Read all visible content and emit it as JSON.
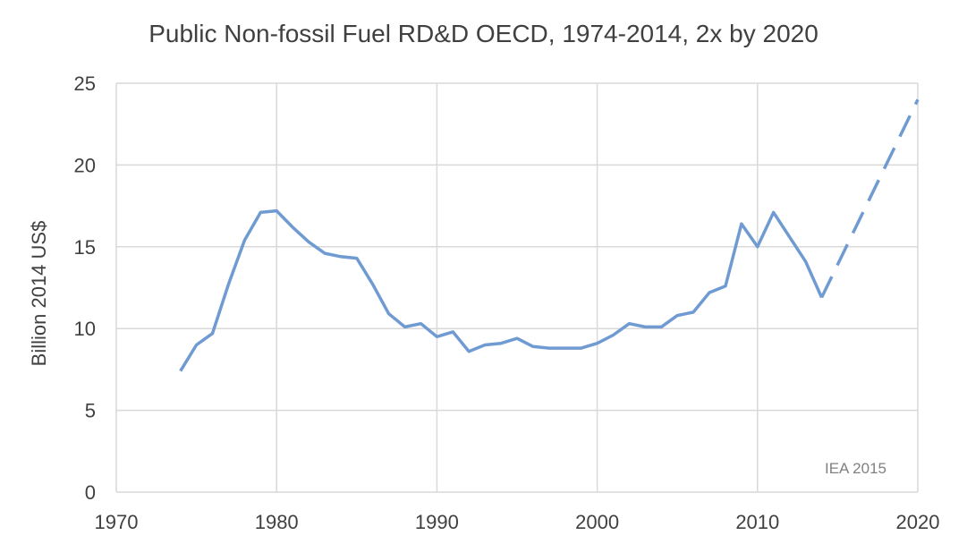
{
  "chart_data": {
    "type": "line",
    "title": "Public Non-fossil Fuel RD&D OECD, 1974-2014, 2x by 2020",
    "xlabel": "",
    "ylabel": "Billion 2014 US$",
    "xlim": [
      1970,
      2020
    ],
    "ylim": [
      0,
      25
    ],
    "x_ticks": [
      "1970",
      "1980",
      "1990",
      "2000",
      "2010",
      "2020"
    ],
    "y_ticks": [
      "0",
      "5",
      "10",
      "15",
      "20",
      "25"
    ],
    "grid": true,
    "legend": "none",
    "annotation": "IEA 2015",
    "color": "#6f9bd2",
    "series": [
      {
        "style": "solid",
        "x": [
          1974,
          1975,
          1976,
          1977,
          1978,
          1979,
          1980,
          1981,
          1982,
          1983,
          1984,
          1985,
          1986,
          1987,
          1988,
          1989,
          1990,
          1991,
          1992,
          1993,
          1994,
          1995,
          1996,
          1997,
          1998,
          1999,
          2000,
          2001,
          2002,
          2003,
          2004,
          2005,
          2006,
          2007,
          2008,
          2009,
          2010,
          2011,
          2012,
          2013,
          2014
        ],
        "y": [
          7.4,
          9.0,
          9.7,
          12.7,
          15.4,
          17.1,
          17.2,
          16.2,
          15.3,
          14.6,
          14.4,
          14.3,
          12.7,
          10.9,
          10.1,
          10.3,
          9.5,
          9.8,
          8.6,
          9.0,
          9.1,
          9.4,
          8.9,
          8.8,
          8.8,
          8.8,
          9.1,
          9.6,
          10.3,
          10.1,
          10.1,
          10.8,
          11.0,
          12.2,
          12.6,
          16.4,
          15.0,
          17.1,
          15.6,
          14.1,
          11.9
        ]
      },
      {
        "style": "dashed",
        "x": [
          2014,
          2020
        ],
        "y": [
          11.9,
          24.0
        ]
      }
    ]
  }
}
